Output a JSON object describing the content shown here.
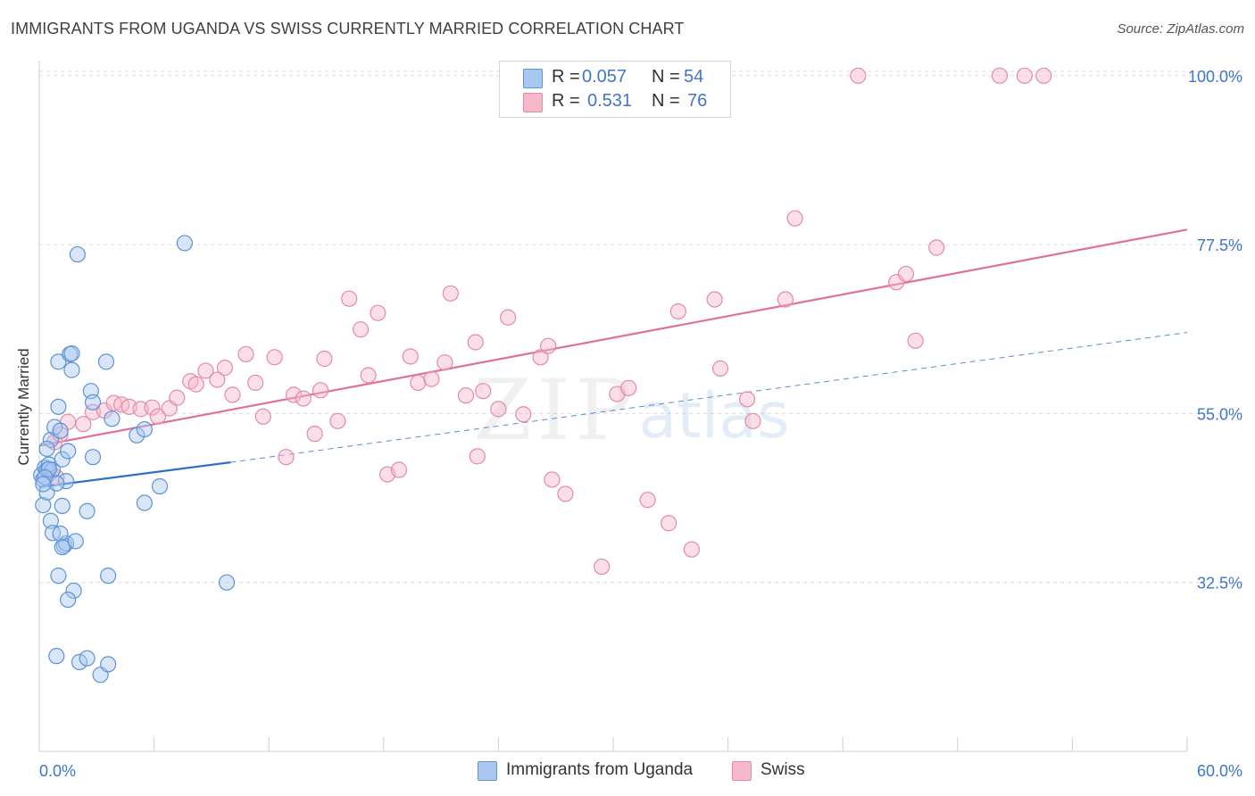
{
  "header": {
    "title": "IMMIGRANTS FROM UGANDA VS SWISS CURRENTLY MARRIED CORRELATION CHART",
    "source": "Source: ZipAtlas.com"
  },
  "watermark": {
    "zip": "ZIP",
    "atlas": "atlas"
  },
  "legend": {
    "rows": [
      {
        "r_label": "R =",
        "r_value": "0.057",
        "n_label": "N =",
        "n_value": "54",
        "color": "#a9c8f0"
      },
      {
        "r_label": "R =",
        "r_value": "0.531",
        "n_label": "N =",
        "n_value": "76",
        "color": "#f6b8cb"
      }
    ]
  },
  "bottom_legend": {
    "items": [
      {
        "label": "Immigrants from Uganda",
        "color": "#a9c8f0"
      },
      {
        "label": "Swiss",
        "color": "#f6b8cb"
      }
    ]
  },
  "colors": {
    "uganda_fill": "#a9c8f0",
    "uganda_stroke": "#5b93d6",
    "uganda_line": "#2e6fc7",
    "swiss_fill": "#f6b8cb",
    "swiss_stroke": "#e48aa5",
    "swiss_line": "#e07097",
    "tick_label": "#3f76c7",
    "grid": "#dcdcdc"
  },
  "chart_data": {
    "type": "scatter",
    "title": "IMMIGRANTS FROM UGANDA VS SWISS CURRENTLY MARRIED CORRELATION CHART",
    "xlabel": "",
    "ylabel": "Currently Married",
    "xlim": [
      0,
      60
    ],
    "ylim": [
      10,
      102
    ],
    "x_tick_labels": [
      "0.0%",
      "60.0%"
    ],
    "y_ticks": [
      32.5,
      55.0,
      77.5,
      100.0
    ],
    "y_tick_labels": [
      "32.5%",
      "55.0%",
      "77.5%",
      "100.0%"
    ],
    "grid": true,
    "legend_position": "top-center",
    "series": [
      {
        "name": "Immigrants from Uganda",
        "r": 0.057,
        "n": 54,
        "trend": {
          "x": [
            0,
            10
          ],
          "y": [
            45.2,
            48.5
          ],
          "dashed_to": [
            60,
            65.8
          ]
        },
        "points": [
          [
            0.1,
            46.8
          ],
          [
            0.2,
            46.2
          ],
          [
            0.3,
            47.8
          ],
          [
            0.4,
            47.5
          ],
          [
            0.2,
            42.8
          ],
          [
            0.4,
            44.5
          ],
          [
            0.5,
            48.2
          ],
          [
            0.6,
            51.5
          ],
          [
            0.8,
            53.2
          ],
          [
            0.7,
            47.5
          ],
          [
            0.6,
            40.7
          ],
          [
            0.7,
            39.1
          ],
          [
            1.0,
            55.9
          ],
          [
            1.1,
            52.7
          ],
          [
            1.2,
            48.9
          ],
          [
            1.0,
            61.9
          ],
          [
            1.2,
            42.7
          ],
          [
            1.3,
            37.4
          ],
          [
            1.4,
            46.0
          ],
          [
            1.4,
            37.7
          ],
          [
            1.5,
            50.0
          ],
          [
            1.1,
            39.0
          ],
          [
            1.2,
            37.2
          ],
          [
            1.7,
            60.8
          ],
          [
            1.6,
            62.9
          ],
          [
            1.7,
            63.0
          ],
          [
            1.9,
            38.0
          ],
          [
            1.8,
            31.4
          ],
          [
            1.5,
            30.2
          ],
          [
            1.0,
            33.4
          ],
          [
            2.0,
            76.2
          ],
          [
            2.5,
            42.0
          ],
          [
            2.7,
            58.0
          ],
          [
            2.8,
            56.5
          ],
          [
            2.8,
            49.2
          ],
          [
            3.5,
            61.9
          ],
          [
            3.8,
            54.3
          ],
          [
            3.6,
            33.4
          ],
          [
            5.1,
            52.1
          ],
          [
            5.5,
            52.9
          ],
          [
            6.3,
            45.3
          ],
          [
            5.5,
            43.1
          ],
          [
            7.6,
            77.7
          ],
          [
            9.8,
            32.5
          ],
          [
            0.9,
            22.7
          ],
          [
            2.1,
            21.9
          ],
          [
            2.5,
            22.4
          ],
          [
            3.2,
            20.2
          ],
          [
            3.6,
            21.6
          ],
          [
            0.9,
            45.7
          ],
          [
            0.5,
            47.6
          ],
          [
            0.3,
            46.5
          ],
          [
            0.2,
            45.6
          ],
          [
            0.4,
            50.3
          ]
        ]
      },
      {
        "name": "Swiss",
        "r": 0.531,
        "n": 76,
        "trend": {
          "x": [
            0,
            60
          ],
          "y": [
            50.7,
            79.5
          ]
        },
        "points": [
          [
            0.6,
            47.1
          ],
          [
            0.8,
            51.2
          ],
          [
            0.9,
            46.5
          ],
          [
            1.1,
            52.2
          ],
          [
            1.5,
            53.9
          ],
          [
            2.3,
            53.6
          ],
          [
            2.8,
            55.2
          ],
          [
            3.4,
            55.4
          ],
          [
            3.9,
            56.4
          ],
          [
            4.3,
            56.2
          ],
          [
            4.7,
            55.9
          ],
          [
            5.3,
            55.6
          ],
          [
            5.9,
            55.8
          ],
          [
            6.2,
            54.6
          ],
          [
            6.8,
            55.7
          ],
          [
            7.2,
            57.1
          ],
          [
            7.9,
            59.3
          ],
          [
            8.2,
            58.9
          ],
          [
            8.7,
            60.7
          ],
          [
            9.3,
            59.5
          ],
          [
            9.7,
            61.1
          ],
          [
            10.1,
            57.5
          ],
          [
            10.8,
            62.9
          ],
          [
            11.3,
            59.1
          ],
          [
            11.7,
            54.6
          ],
          [
            12.3,
            62.5
          ],
          [
            12.9,
            49.2
          ],
          [
            13.3,
            57.5
          ],
          [
            13.8,
            57.0
          ],
          [
            14.4,
            52.3
          ],
          [
            14.7,
            58.1
          ],
          [
            14.9,
            62.3
          ],
          [
            15.6,
            54.0
          ],
          [
            16.2,
            70.3
          ],
          [
            16.8,
            66.2
          ],
          [
            17.2,
            60.1
          ],
          [
            17.7,
            68.4
          ],
          [
            18.2,
            46.9
          ],
          [
            18.8,
            47.5
          ],
          [
            19.4,
            62.6
          ],
          [
            19.8,
            59.1
          ],
          [
            20.5,
            59.6
          ],
          [
            21.2,
            61.8
          ],
          [
            21.5,
            71.0
          ],
          [
            22.3,
            57.4
          ],
          [
            22.8,
            64.5
          ],
          [
            22.9,
            49.3
          ],
          [
            23.2,
            58.0
          ],
          [
            24.0,
            55.6
          ],
          [
            24.5,
            67.8
          ],
          [
            25.3,
            54.9
          ],
          [
            26.2,
            62.5
          ],
          [
            26.6,
            64.0
          ],
          [
            26.8,
            46.2
          ],
          [
            27.5,
            44.3
          ],
          [
            29.4,
            34.6
          ],
          [
            30.2,
            57.6
          ],
          [
            30.8,
            58.4
          ],
          [
            31.8,
            43.5
          ],
          [
            32.9,
            40.4
          ],
          [
            33.4,
            68.6
          ],
          [
            34.1,
            36.9
          ],
          [
            35.3,
            70.2
          ],
          [
            35.6,
            61.0
          ],
          [
            37.0,
            56.9
          ],
          [
            37.3,
            54.0
          ],
          [
            39.0,
            70.2
          ],
          [
            39.5,
            81.0
          ],
          [
            42.8,
            100.0
          ],
          [
            44.8,
            72.5
          ],
          [
            45.3,
            73.6
          ],
          [
            45.8,
            64.7
          ],
          [
            46.9,
            77.1
          ],
          [
            50.2,
            100.0
          ],
          [
            51.5,
            100.0
          ],
          [
            52.5,
            100.0
          ]
        ]
      }
    ]
  }
}
